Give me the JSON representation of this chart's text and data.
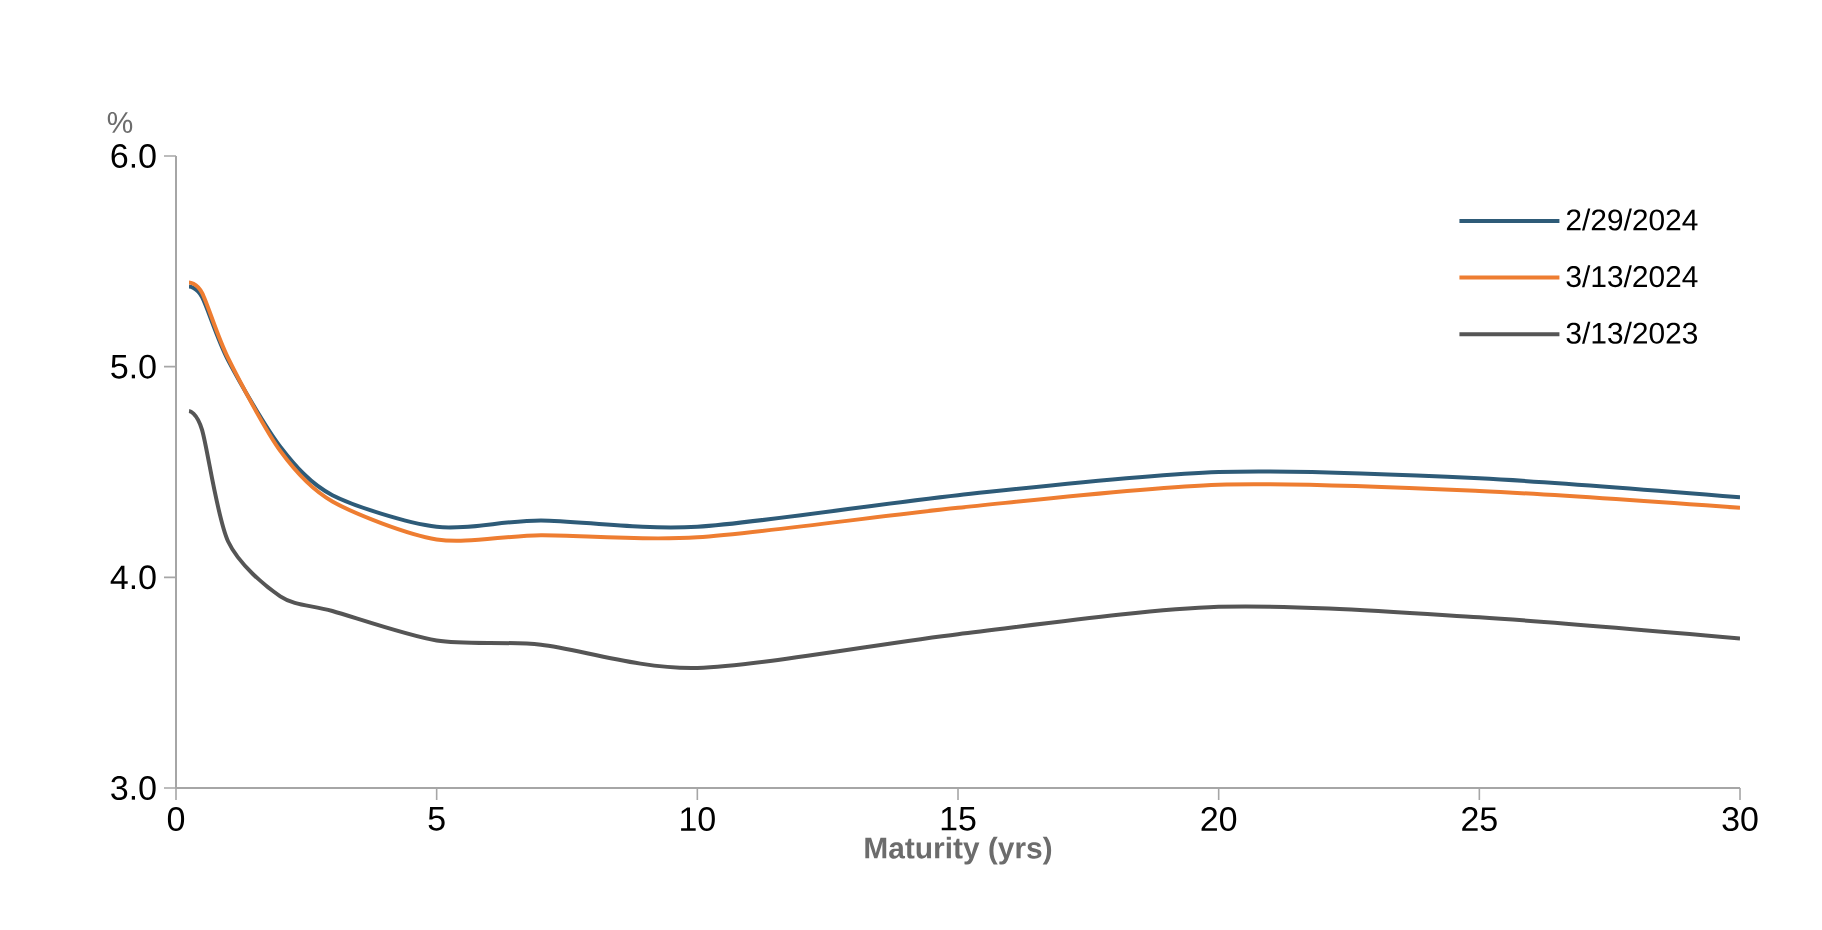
{
  "chart_data": {
    "type": "line",
    "ylabel": "%",
    "xlabel": "Maturity (yrs)",
    "x": [
      0.25,
      0.5,
      1,
      2,
      3,
      5,
      7,
      10,
      15,
      20,
      25,
      30
    ],
    "series": [
      {
        "name": "2/29/2024",
        "color": "#2e5b78",
        "values": [
          5.38,
          5.33,
          5.03,
          4.62,
          4.39,
          4.24,
          4.27,
          4.24,
          4.39,
          4.5,
          4.47,
          4.38
        ]
      },
      {
        "name": "3/13/2024",
        "color": "#ee7d31",
        "values": [
          5.4,
          5.35,
          5.04,
          4.6,
          4.36,
          4.18,
          4.2,
          4.19,
          4.33,
          4.44,
          4.41,
          4.33
        ]
      },
      {
        "name": "3/13/2023",
        "color": "#555555",
        "values": [
          4.79,
          4.7,
          4.17,
          3.91,
          3.84,
          3.7,
          3.68,
          3.57,
          3.73,
          3.86,
          3.81,
          3.71
        ]
      }
    ],
    "xlim": [
      0,
      30
    ],
    "xticks": [
      0,
      5,
      10,
      15,
      20,
      25,
      30
    ],
    "ylim": [
      3,
      6
    ],
    "yticks": [
      {
        "value": 3,
        "label": "3.0"
      },
      {
        "value": 4,
        "label": "4.0"
      },
      {
        "value": 5,
        "label": "5.0"
      },
      {
        "value": 6,
        "label": "6.0"
      }
    ],
    "legend": "top right",
    "grid": false,
    "marker": "none",
    "line_style": "solid"
  }
}
